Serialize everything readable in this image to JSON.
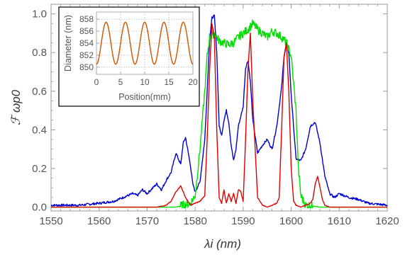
{
  "chart_data": [
    {
      "type": "line",
      "xlabel": "λi (nm)",
      "ylabel": "ℱ ωp0",
      "xlim": [
        1550,
        1620
      ],
      "ylim": [
        -0.02,
        1.05
      ],
      "xticks": [
        1550,
        1560,
        1570,
        1580,
        1590,
        1600,
        1610,
        1620
      ],
      "xtick_labels": [
        "1550",
        "1560",
        "1570",
        "1580",
        "1590",
        "1600",
        "1610",
        "1620"
      ],
      "yticks": [
        0.0,
        0.2,
        0.4,
        0.6,
        0.8,
        1.0
      ],
      "ytick_labels": [
        "0.0",
        "0.2",
        "0.4",
        "0.6",
        "0.8",
        "1.0"
      ],
      "grid": false,
      "series": [
        {
          "color": "#0000cc",
          "x": [
            1550,
            1556,
            1560,
            1563,
            1565,
            1567,
            1568,
            1569,
            1570,
            1572,
            1573,
            1574,
            1575,
            1576,
            1577,
            1577.5,
            1578,
            1579,
            1579.5,
            1580,
            1581,
            1582,
            1582.5,
            1583,
            1583.5,
            1584,
            1584.5,
            1585,
            1585.5,
            1586,
            1586.5,
            1587,
            1587.5,
            1588,
            1588.5,
            1589,
            1590,
            1590.5,
            1591,
            1591.5,
            1592,
            1593,
            1594,
            1595,
            1596,
            1597,
            1598,
            1598.5,
            1599,
            1599.5,
            1600,
            1601,
            1602,
            1603,
            1604,
            1605,
            1606,
            1607,
            1608,
            1609,
            1610,
            1612,
            1614,
            1616,
            1620
          ],
          "y": [
            0.01,
            0.01,
            0.02,
            0.03,
            0.05,
            0.07,
            0.06,
            0.09,
            0.07,
            0.12,
            0.09,
            0.14,
            0.18,
            0.28,
            0.22,
            0.33,
            0.36,
            0.22,
            0.12,
            0.08,
            0.13,
            0.35,
            0.6,
            0.86,
            0.98,
            0.99,
            0.8,
            0.42,
            0.37,
            0.45,
            0.5,
            0.44,
            0.32,
            0.24,
            0.3,
            0.42,
            0.52,
            0.72,
            0.76,
            0.65,
            0.45,
            0.28,
            0.32,
            0.35,
            0.3,
            0.42,
            0.62,
            0.78,
            0.84,
            0.8,
            0.58,
            0.25,
            0.24,
            0.3,
            0.42,
            0.44,
            0.33,
            0.16,
            0.07,
            0.05,
            0.07,
            0.05,
            0.04,
            0.02,
            0.01
          ]
        },
        {
          "color": "#00dd00",
          "x": [
            1550,
            1576,
            1579,
            1580,
            1581,
            1582,
            1582.5,
            1583,
            1584,
            1585,
            1586,
            1587,
            1588,
            1589,
            1590,
            1591,
            1592,
            1593,
            1594,
            1595,
            1596,
            1597,
            1598,
            1599,
            1600,
            1601,
            1601.5,
            1602,
            1603,
            1606,
            1620
          ],
          "y": [
            0.0,
            0.0,
            0.02,
            0.06,
            0.3,
            0.6,
            0.78,
            0.88,
            0.9,
            0.86,
            0.85,
            0.84,
            0.85,
            0.88,
            0.9,
            0.92,
            0.95,
            0.92,
            0.9,
            0.88,
            0.91,
            0.9,
            0.88,
            0.85,
            0.78,
            0.5,
            0.2,
            0.06,
            0.01,
            0.0,
            0.0
          ]
        },
        {
          "color": "#dd0000",
          "x": [
            1550,
            1572,
            1574,
            1575,
            1576,
            1577,
            1578,
            1579,
            1580,
            1581,
            1582,
            1582.5,
            1583,
            1583.5,
            1584,
            1584.5,
            1585,
            1585.5,
            1586,
            1586.5,
            1587,
            1587.5,
            1588,
            1588.5,
            1589,
            1589.5,
            1590,
            1590.5,
            1591,
            1591.5,
            1592,
            1593,
            1594,
            1595,
            1596,
            1597,
            1597.5,
            1598,
            1598.5,
            1599,
            1599.5,
            1600,
            1600.5,
            1601,
            1602,
            1603,
            1604,
            1604.5,
            1605,
            1605.5,
            1606,
            1606.5,
            1607,
            1608,
            1610,
            1620
          ],
          "y": [
            0.0,
            0.0,
            0.01,
            0.03,
            0.08,
            0.11,
            0.05,
            0.01,
            0.02,
            0.03,
            0.06,
            0.35,
            0.7,
            0.95,
            0.88,
            0.4,
            0.05,
            0.02,
            0.09,
            0.02,
            0.07,
            0.03,
            0.07,
            0.02,
            0.09,
            0.08,
            0.03,
            0.35,
            0.72,
            0.9,
            0.55,
            0.05,
            0.01,
            0.0,
            0.01,
            0.02,
            0.05,
            0.4,
            0.78,
            0.85,
            0.6,
            0.2,
            0.03,
            0.01,
            0.0,
            0.01,
            0.02,
            0.04,
            0.12,
            0.16,
            0.1,
            0.04,
            0.01,
            0.0,
            0.0,
            0.0
          ]
        }
      ]
    },
    {
      "type": "line",
      "xlabel": "Position(mm)",
      "ylabel": "Diameter (nm)",
      "xlim": [
        0,
        20
      ],
      "ylim": [
        848.8,
        859.2
      ],
      "xticks": [
        0,
        5,
        10,
        15,
        20
      ],
      "xtick_labels": [
        "0",
        "5",
        "10",
        "15",
        "20"
      ],
      "yticks": [
        850,
        852,
        854,
        856,
        858
      ],
      "ytick_labels": [
        "850",
        "852",
        "854",
        "856",
        "858"
      ],
      "grid": true,
      "series": [
        {
          "color": "#cc5500",
          "function": "sine",
          "mean": 854,
          "amplitude": 3.5,
          "period": 4,
          "x_range": [
            0,
            20
          ]
        }
      ]
    }
  ]
}
